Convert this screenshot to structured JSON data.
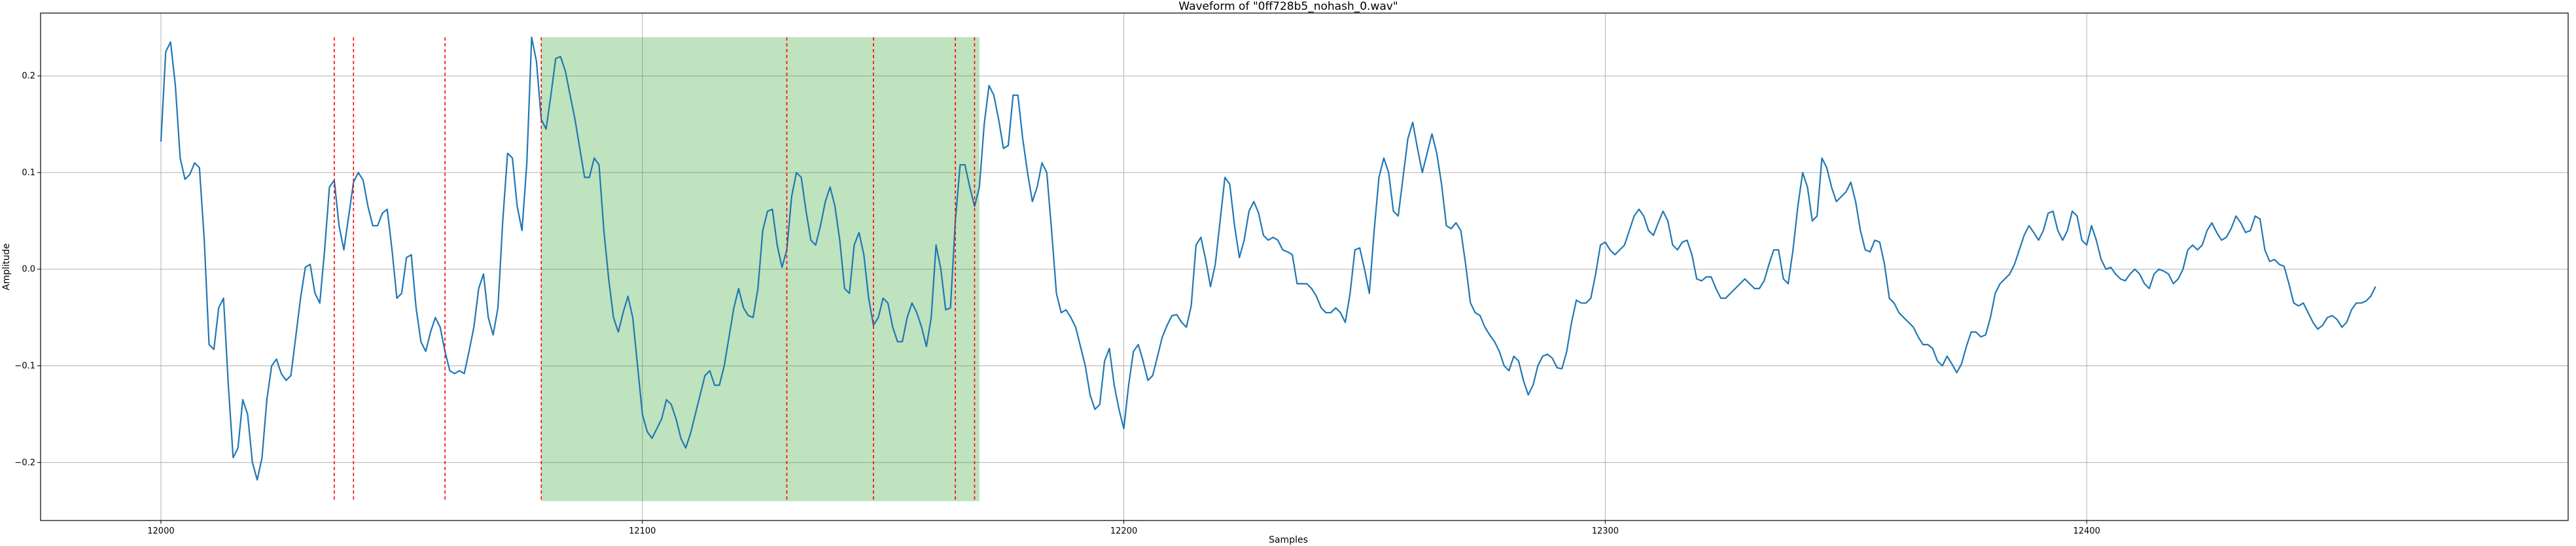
{
  "chart_data": {
    "type": "line",
    "title": "Waveform of \"0ff728b5_nohash_0.wav\"",
    "xlabel": "Samples",
    "ylabel": "Amplitude",
    "xlim": [
      11975,
      12500
    ],
    "ylim": [
      -0.26,
      0.265
    ],
    "xticks": [
      12000,
      12100,
      12200,
      12300,
      12400
    ],
    "yticks": [
      -0.2,
      -0.1,
      0.0,
      0.1,
      0.2
    ],
    "ytick_labels": [
      "−0.2",
      "−0.1",
      "0.0",
      "0.1",
      "0.2"
    ],
    "grid": true,
    "series": [
      {
        "color": "#1f77b4",
        "x_start": 12000,
        "x_step": 1,
        "values": [
          0.132,
          0.225,
          0.235,
          0.19,
          0.115,
          0.093,
          0.098,
          0.11,
          0.105,
          0.03,
          -0.078,
          -0.083,
          -0.04,
          -0.03,
          -0.12,
          -0.195,
          -0.185,
          -0.135,
          -0.15,
          -0.2,
          -0.218,
          -0.195,
          -0.135,
          -0.1,
          -0.093,
          -0.108,
          -0.115,
          -0.11,
          -0.07,
          -0.03,
          0.002,
          0.005,
          -0.025,
          -0.035,
          0.02,
          0.085,
          0.092,
          0.045,
          0.02,
          0.055,
          0.09,
          0.1,
          0.092,
          0.065,
          0.045,
          0.045,
          0.058,
          0.062,
          0.02,
          -0.03,
          -0.025,
          0.012,
          0.015,
          -0.04,
          -0.075,
          -0.085,
          -0.065,
          -0.05,
          -0.06,
          -0.085,
          -0.105,
          -0.108,
          -0.105,
          -0.108,
          -0.085,
          -0.06,
          -0.02,
          -0.005,
          -0.05,
          -0.068,
          -0.04,
          0.05,
          0.12,
          0.115,
          0.065,
          0.04,
          0.11,
          0.24,
          0.215,
          0.155,
          0.145,
          0.18,
          0.218,
          0.22,
          0.205,
          0.18,
          0.155,
          0.125,
          0.095,
          0.095,
          0.115,
          0.108,
          0.04,
          -0.01,
          -0.05,
          -0.065,
          -0.045,
          -0.028,
          -0.05,
          -0.1,
          -0.15,
          -0.168,
          -0.175,
          -0.165,
          -0.155,
          -0.135,
          -0.14,
          -0.155,
          -0.175,
          -0.185,
          -0.17,
          -0.15,
          -0.13,
          -0.11,
          -0.105,
          -0.12,
          -0.12,
          -0.1,
          -0.07,
          -0.04,
          -0.02,
          -0.04,
          -0.048,
          -0.05,
          -0.02,
          0.04,
          0.06,
          0.062,
          0.025,
          0.002,
          0.02,
          0.075,
          0.1,
          0.095,
          0.06,
          0.03,
          0.025,
          0.045,
          0.07,
          0.085,
          0.065,
          0.03,
          -0.02,
          -0.025,
          0.025,
          0.038,
          0.015,
          -0.03,
          -0.058,
          -0.05,
          -0.03,
          -0.035,
          -0.06,
          -0.075,
          -0.075,
          -0.05,
          -0.035,
          -0.045,
          -0.06,
          -0.08,
          -0.05,
          0.025,
          0.0,
          -0.042,
          -0.04,
          0.05,
          0.108,
          0.108,
          0.085,
          0.065,
          0.085,
          0.15,
          0.19,
          0.18,
          0.155,
          0.125,
          0.128,
          0.18,
          0.18,
          0.135,
          0.1,
          0.07,
          0.085,
          0.11,
          0.1,
          0.04,
          -0.025,
          -0.045,
          -0.042,
          -0.05,
          -0.06,
          -0.08,
          -0.1,
          -0.13,
          -0.145,
          -0.14,
          -0.095,
          -0.082,
          -0.12,
          -0.145,
          -0.165,
          -0.12,
          -0.085,
          -0.078,
          -0.095,
          -0.115,
          -0.11,
          -0.09,
          -0.07,
          -0.058,
          -0.048,
          -0.047,
          -0.055,
          -0.06,
          -0.038,
          0.025,
          0.033,
          0.01,
          -0.018,
          0.005,
          0.05,
          0.095,
          0.088,
          0.045,
          0.012,
          0.03,
          0.06,
          0.07,
          0.058,
          0.035,
          0.03,
          0.033,
          0.03,
          0.02,
          0.018,
          0.015,
          -0.015,
          -0.015,
          -0.015,
          -0.02,
          -0.028,
          -0.04,
          -0.045,
          -0.045,
          -0.04,
          -0.045,
          -0.055,
          -0.025,
          0.02,
          0.022,
          0.0,
          -0.025,
          0.04,
          0.095,
          0.115,
          0.1,
          0.06,
          0.055,
          0.095,
          0.135,
          0.152,
          0.125,
          0.1,
          0.12,
          0.14,
          0.12,
          0.088,
          0.045,
          0.042,
          0.048,
          0.04,
          0.005,
          -0.035,
          -0.045,
          -0.048,
          -0.06,
          -0.068,
          -0.075,
          -0.085,
          -0.1,
          -0.105,
          -0.09,
          -0.095,
          -0.115,
          -0.13,
          -0.12,
          -0.1,
          -0.09,
          -0.088,
          -0.092,
          -0.102,
          -0.103,
          -0.085,
          -0.055,
          -0.032,
          -0.035,
          -0.035,
          -0.03,
          -0.005,
          0.025,
          0.028,
          0.02,
          0.015,
          0.02,
          0.025,
          0.04,
          0.055,
          0.062,
          0.055,
          0.04,
          0.035,
          0.048,
          0.06,
          0.05,
          0.025,
          0.02,
          0.028,
          0.03,
          0.015,
          -0.01,
          -0.012,
          -0.008,
          -0.008,
          -0.02,
          -0.03,
          -0.03,
          -0.025,
          -0.02,
          -0.015,
          -0.01,
          -0.015,
          -0.02,
          -0.02,
          -0.012,
          0.005,
          0.02,
          0.02,
          -0.01,
          -0.015,
          0.02,
          0.065,
          0.1,
          0.085,
          0.05,
          0.055,
          0.115,
          0.105,
          0.085,
          0.07,
          0.075,
          0.08,
          0.09,
          0.07,
          0.04,
          0.02,
          0.018,
          0.03,
          0.028,
          0.005,
          -0.03,
          -0.035,
          -0.045,
          -0.05,
          -0.055,
          -0.06,
          -0.07,
          -0.078,
          -0.078,
          -0.082,
          -0.095,
          -0.1,
          -0.09,
          -0.098,
          -0.107,
          -0.098,
          -0.08,
          -0.065,
          -0.065,
          -0.07,
          -0.068,
          -0.05,
          -0.025,
          -0.015,
          -0.01,
          -0.005,
          0.005,
          0.02,
          0.035,
          0.045,
          0.038,
          0.03,
          0.04,
          0.058,
          0.06,
          0.04,
          0.03,
          0.04,
          0.06,
          0.055,
          0.03,
          0.025,
          0.045,
          0.03,
          0.01,
          0.0,
          0.002,
          -0.005,
          -0.01,
          -0.012,
          -0.005,
          0.0,
          -0.005,
          -0.015,
          -0.02,
          -0.005,
          0.0,
          -0.002,
          -0.005,
          -0.015,
          -0.01,
          0.0,
          0.02,
          0.025,
          0.02,
          0.025,
          0.04,
          0.048,
          0.038,
          0.03,
          0.033,
          0.042,
          0.055,
          0.048,
          0.038,
          0.04,
          0.055,
          0.052,
          0.02,
          0.008,
          0.01,
          0.005,
          0.003,
          -0.015,
          -0.035,
          -0.038,
          -0.035,
          -0.045,
          -0.055,
          -0.062,
          -0.058,
          -0.05,
          -0.048,
          -0.052,
          -0.06,
          -0.055,
          -0.042,
          -0.035,
          -0.035,
          -0.033,
          -0.028,
          -0.018
        ]
      }
    ],
    "vertical_markers": {
      "color": "#ff0000",
      "style": "dashed",
      "x": [
        12036,
        12040,
        12059,
        12079,
        12130,
        12148,
        12165,
        12169
      ],
      "y_range": [
        -0.24,
        0.24
      ]
    },
    "shaded_region": {
      "color": "#2ca02c",
      "x_range": [
        12079,
        12170
      ],
      "y_range": [
        -0.24,
        0.24
      ]
    }
  }
}
